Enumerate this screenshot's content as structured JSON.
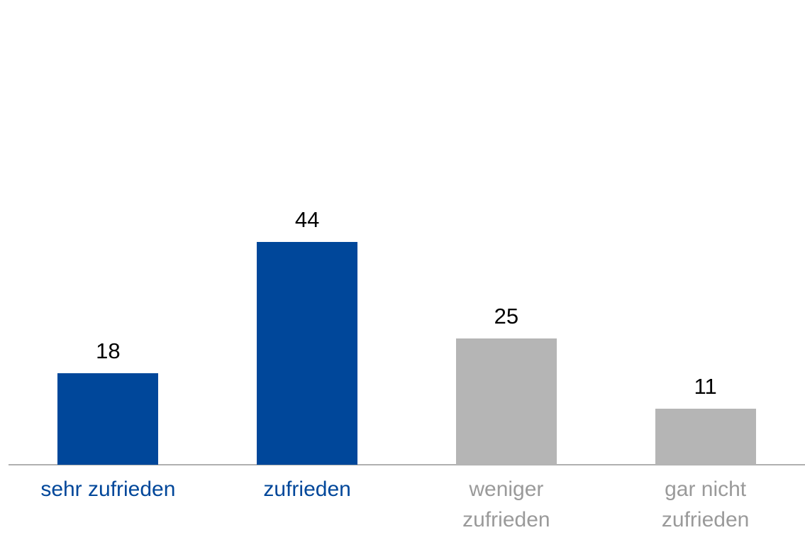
{
  "chart_data": {
    "type": "bar",
    "categories": [
      "sehr zufrieden",
      "zufrieden",
      "weniger zufrieden",
      "gar nicht zufrieden"
    ],
    "values": [
      18,
      44,
      25,
      11
    ],
    "colors": [
      "#00479a",
      "#00479a",
      "#b5b5b5",
      "#b5b5b5"
    ],
    "label_colors": [
      "#00479a",
      "#00479a",
      "#9a9a9a",
      "#9a9a9a"
    ],
    "grid": false
  }
}
